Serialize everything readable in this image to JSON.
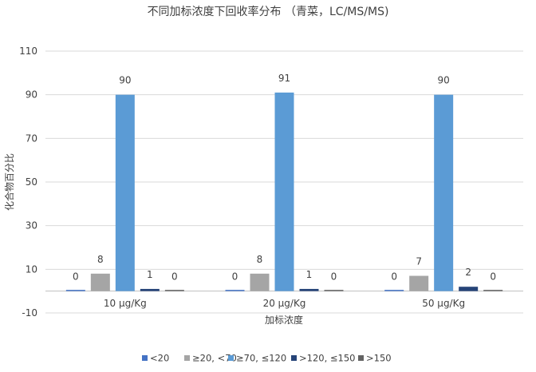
{
  "chart_data": {
    "type": "bar",
    "title": "不同加标浓度下回收率分布 （青菜，LC/MS/MS)",
    "xlabel": "加标浓度",
    "ylabel": "化合物百分比",
    "categories": [
      "10 μg/Kg",
      "20 μg/Kg",
      "50 μg/Kg"
    ],
    "ylim": [
      -10,
      110
    ],
    "yticks": [
      -10,
      10,
      30,
      50,
      70,
      90,
      110
    ],
    "grid": true,
    "legend_position": "bottom",
    "series": [
      {
        "name": "<20",
        "values": [
          0,
          0,
          0
        ],
        "labels": [
          "0",
          "0",
          "0"
        ],
        "color": "#4472c4"
      },
      {
        "name": "≥20, <70",
        "values": [
          8,
          8,
          7
        ],
        "labels": [
          "8",
          "8",
          "7"
        ],
        "color": "#a5a5a5"
      },
      {
        "name": "≥70, ≤120",
        "values": [
          90,
          91,
          90
        ],
        "labels": [
          "90",
          "91",
          "90"
        ],
        "color": "#5b9bd5"
      },
      {
        "name": ">120, ≤150",
        "values": [
          1,
          1,
          2
        ],
        "labels": [
          "1",
          "1",
          "2"
        ],
        "color": "#264478"
      },
      {
        "name": ">150",
        "values": [
          0,
          0,
          0
        ],
        "labels": [
          "0",
          "0",
          "0"
        ],
        "color": "#636363"
      }
    ]
  }
}
